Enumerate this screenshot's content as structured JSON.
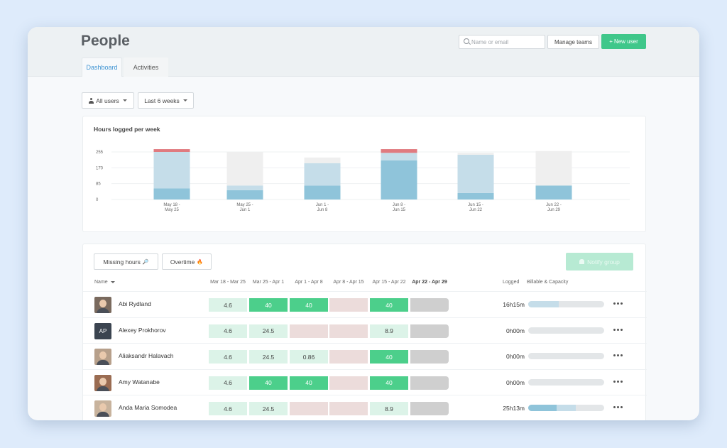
{
  "header": {
    "title": "People",
    "search_placeholder": "Name or email",
    "manage_teams": "Manage teams",
    "new_user": "New user",
    "new_user_plus": "+"
  },
  "tabs": [
    {
      "label": "Dashboard",
      "active": true
    },
    {
      "label": "Activities",
      "active": false
    }
  ],
  "filters": {
    "users": "All users",
    "range": "Last 6 weeks"
  },
  "chart_data": {
    "type": "bar",
    "title": "Hours logged per week",
    "stacked": true,
    "yticks": [
      "255",
      "170",
      "85",
      "0"
    ],
    "ylim": [
      0,
      255
    ],
    "categories": [
      [
        "May 18 -",
        "May 25"
      ],
      [
        "May 25 -",
        "Jun 1"
      ],
      [
        "Jun 1 -",
        "Jun 8"
      ],
      [
        "Jun 8 -",
        "Jun 15"
      ],
      [
        "Jun 15 -",
        "Jun 22"
      ],
      [
        "Jun 22 -",
        "Jun 29"
      ]
    ],
    "series": [
      {
        "values": [
          60,
          50,
          75,
          210,
          35,
          75
        ],
        "color": "#8fc4da"
      },
      {
        "values": [
          195,
          25,
          120,
          40,
          205,
          0
        ],
        "color": "#c5dde9"
      },
      {
        "values": [
          0,
          180,
          30,
          0,
          10,
          185
        ],
        "color": "#efefef"
      },
      {
        "values": [
          15,
          0,
          0,
          20,
          0,
          0
        ],
        "color": "#e07a7f"
      }
    ]
  },
  "table": {
    "missing_hours": "Missing hours",
    "missing_icon": "🔎",
    "overtime": "Overtime",
    "overtime_icon": "🔥",
    "notify_group": "Notify group",
    "col_name": "Name",
    "week_headers": [
      "Mar 18 - Mar 25",
      "Mar 25 - Apr 1",
      "Apr 1 - Apr 8",
      "Apr 8 - Apr 15",
      "Apr 15 - Apr 22",
      "Apr 22 - Apr 29"
    ],
    "col_logged": "Logged",
    "col_capacity": "Billable & Capacity",
    "rows": [
      {
        "name": "Abi Rydland",
        "initials": "",
        "avatar_color": "#7a6a5e",
        "cells": [
          [
            "4.6",
            "light"
          ],
          [
            "40",
            "green"
          ],
          [
            "40",
            "green"
          ],
          [
            "",
            "pink"
          ],
          [
            "40",
            "green"
          ],
          [
            "",
            "gray"
          ]
        ],
        "logged": "16h15m",
        "cap": [
          0,
          0.4
        ]
      },
      {
        "name": "Alexey Prokhorov",
        "initials": "AP",
        "avatar_color": "#3b4450",
        "cells": [
          [
            "4.6",
            "light"
          ],
          [
            "24.5",
            "light"
          ],
          [
            "",
            "pink"
          ],
          [
            "",
            "pink"
          ],
          [
            "8.9",
            "light"
          ],
          [
            "",
            "gray"
          ]
        ],
        "logged": "0h00m",
        "cap": [
          0,
          0
        ]
      },
      {
        "name": "Aliaksandr Halavach",
        "initials": "",
        "avatar_color": "#b7a08b",
        "cells": [
          [
            "4.6",
            "light"
          ],
          [
            "24.5",
            "light"
          ],
          [
            "0.86",
            "light"
          ],
          [
            "",
            "pink"
          ],
          [
            "40",
            "green"
          ],
          [
            "",
            "gray"
          ]
        ],
        "logged": "0h00m",
        "cap": [
          0,
          0
        ]
      },
      {
        "name": "Amy Watanabe",
        "initials": "",
        "avatar_color": "#9a6c52",
        "cells": [
          [
            "4.6",
            "light"
          ],
          [
            "40",
            "green"
          ],
          [
            "40",
            "green"
          ],
          [
            "",
            "pink"
          ],
          [
            "40",
            "green"
          ],
          [
            "",
            "gray"
          ]
        ],
        "logged": "0h00m",
        "cap": [
          0,
          0
        ]
      },
      {
        "name": "Anda Maria Somodea",
        "initials": "",
        "avatar_color": "#c8b39d",
        "cells": [
          [
            "4.6",
            "light"
          ],
          [
            "24.5",
            "light"
          ],
          [
            "",
            "pink"
          ],
          [
            "",
            "pink"
          ],
          [
            "8.9",
            "light"
          ],
          [
            "",
            "gray"
          ]
        ],
        "logged": "25h13m",
        "cap": [
          0.37,
          0.63
        ]
      }
    ]
  }
}
